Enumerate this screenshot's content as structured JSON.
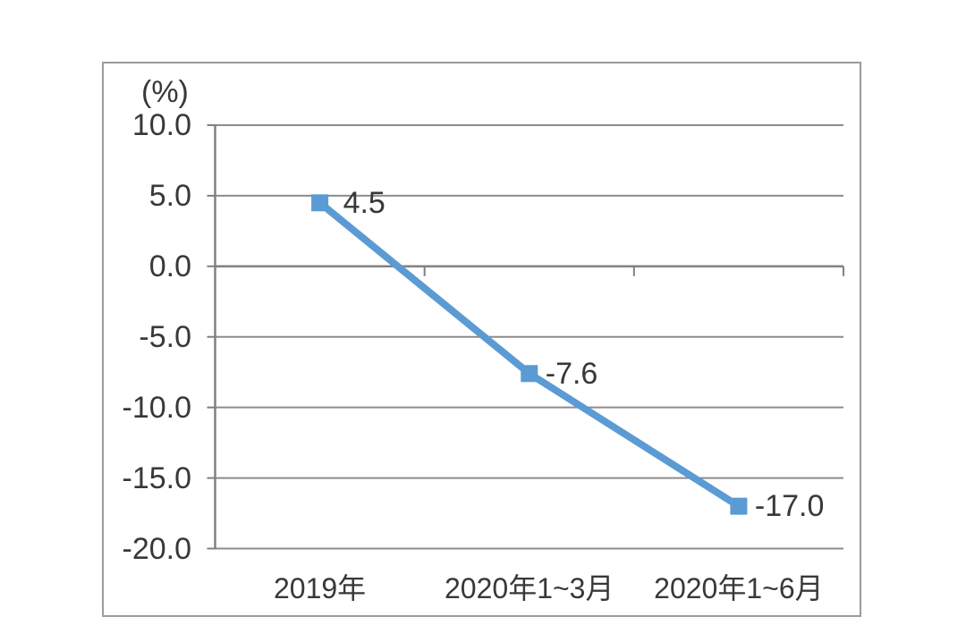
{
  "chart_data": {
    "type": "line",
    "title": "",
    "unit_label": "(%)",
    "categories": [
      "2019年",
      "2020年1~3月",
      "2020年1~6月"
    ],
    "series": [
      {
        "name": "series-1",
        "values": [
          4.5,
          -7.6,
          -17.0
        ]
      }
    ],
    "data_labels": [
      "4.5",
      "-7.6",
      "-17.0"
    ],
    "yticks": [
      "10.0",
      "5.0",
      "0.0",
      "-5.0",
      "-10.0",
      "-15.0",
      "-20.0"
    ],
    "ytick_values": [
      10,
      5,
      0,
      -5,
      -10,
      -15,
      -20
    ],
    "ylim": [
      -20,
      10
    ],
    "grid": true,
    "legend": "none",
    "marker": "square",
    "colors": {
      "line": "#5B9BD5",
      "marker": "#5B9BD5",
      "grid": "#8c8c8c",
      "axis": "#808080",
      "border": "#9b9b9b",
      "text": "#383838"
    }
  }
}
